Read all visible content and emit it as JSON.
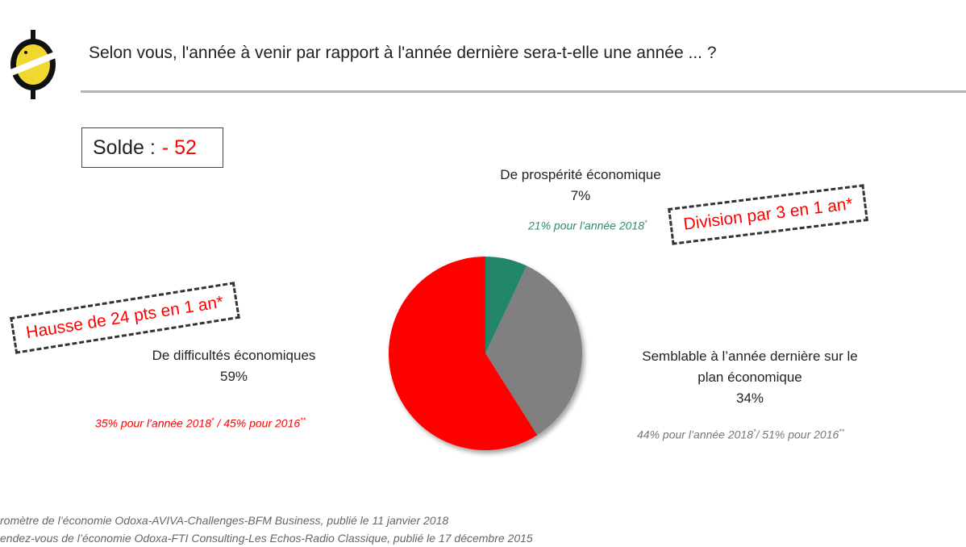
{
  "question": "Selon vous, l'année à venir par rapport à l'année dernière sera-t-elle une année ... ?",
  "solde": {
    "label": "Solde :",
    "value": "- 52"
  },
  "labels": {
    "prosperite": {
      "name": "De prospérité économique",
      "pct": "7%"
    },
    "semblable": {
      "name_line1": "Semblable à l’année dernière sur le",
      "name_line2": "plan économique",
      "pct": "34%"
    },
    "difficultes": {
      "name": "De difficultés économiques",
      "pct": "59%"
    }
  },
  "notes": {
    "prosperite": {
      "text": "21% pour l’année 2018",
      "sup": "*"
    },
    "semblable": {
      "text1": "44% pour l’année 2018",
      "sup1": "*",
      "text2": "/ 51% pour 2016",
      "sup2": "**"
    },
    "difficultes": {
      "text1": "35% pour l’année 2018",
      "sup1": "*",
      "text2": " / 45% pour 2016",
      "sup2": "**"
    }
  },
  "callouts": {
    "right": "Division par 3 en 1 an*",
    "left": "Hausse de 24 pts en 1 an*"
  },
  "sources": {
    "line1": "romètre de l’économie Odoxa-AVIVA-Challenges-BFM Business, publié le 11 janvier 2018",
    "line2": "endez-vous de l’économie Odoxa-FTI Consulting-Les Echos-Radio Classique, publié le 17 décembre 2015"
  },
  "chart_data": {
    "type": "pie",
    "categories": [
      "De prospérité économique",
      "Semblable à l’année dernière sur le plan économique",
      "De difficultés économiques"
    ],
    "values": [
      7,
      34,
      59
    ],
    "colors": [
      "#23876b",
      "#808080",
      "#ff0000"
    ],
    "start": "top",
    "direction": "clockwise"
  }
}
